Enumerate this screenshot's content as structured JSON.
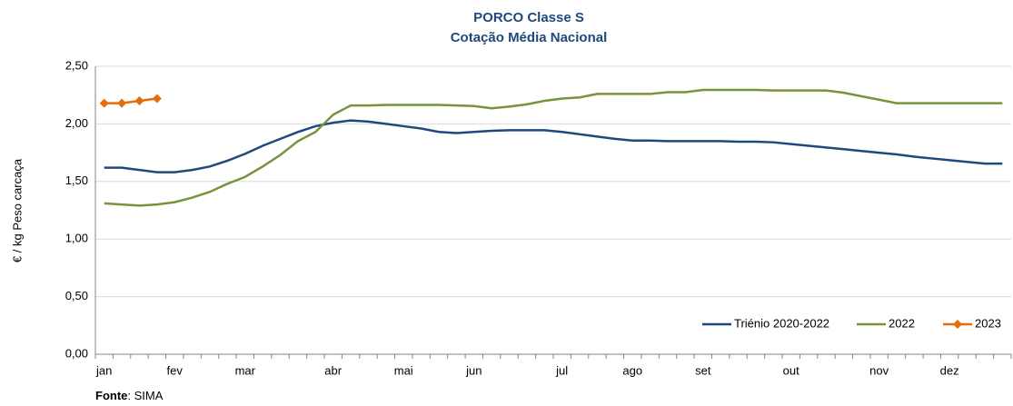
{
  "chart_data": {
    "type": "line",
    "title": "PORCO Classe S",
    "subtitle": "Cotação Média Nacional",
    "y_label": "€ / kg Peso carcaça",
    "source_label": "Fonte",
    "source_text": ": SIMA",
    "categories": [
      "jan",
      null,
      null,
      null,
      "fev",
      null,
      null,
      null,
      "mar",
      null,
      null,
      null,
      null,
      "abr",
      null,
      null,
      null,
      "mai",
      null,
      null,
      null,
      "jun",
      null,
      null,
      null,
      null,
      "jul",
      null,
      null,
      null,
      "ago",
      null,
      null,
      null,
      "set",
      null,
      null,
      null,
      null,
      "out",
      null,
      null,
      null,
      null,
      "nov",
      null,
      null,
      null,
      "dez",
      null,
      null,
      null
    ],
    "series": [
      {
        "name": "Triénio 2020-2022",
        "color": "#1f497d",
        "marker": false,
        "values": [
          1.62,
          1.62,
          1.6,
          1.58,
          1.58,
          1.6,
          1.63,
          1.68,
          1.74,
          1.81,
          1.87,
          1.93,
          1.98,
          2.01,
          2.03,
          2.02,
          2.0,
          1.98,
          1.96,
          1.93,
          1.92,
          1.93,
          1.94,
          1.945,
          1.945,
          1.945,
          1.93,
          1.91,
          1.89,
          1.87,
          1.855,
          1.855,
          1.85,
          1.85,
          1.85,
          1.85,
          1.845,
          1.845,
          1.84,
          1.825,
          1.81,
          1.795,
          1.78,
          1.765,
          1.75,
          1.735,
          1.715,
          1.7,
          1.685,
          1.67,
          1.655,
          1.655
        ]
      },
      {
        "name": "2022",
        "color": "#77933c",
        "marker": false,
        "values": [
          1.31,
          1.3,
          1.29,
          1.3,
          1.32,
          1.36,
          1.41,
          1.48,
          1.54,
          1.63,
          1.73,
          1.85,
          1.93,
          2.08,
          2.16,
          2.16,
          2.165,
          2.165,
          2.165,
          2.165,
          2.16,
          2.155,
          2.135,
          2.15,
          2.17,
          2.2,
          2.22,
          2.23,
          2.26,
          2.26,
          2.26,
          2.26,
          2.275,
          2.275,
          2.295,
          2.295,
          2.295,
          2.295,
          2.29,
          2.29,
          2.29,
          2.29,
          2.27,
          2.24,
          2.21,
          2.18,
          2.18,
          2.18,
          2.18,
          2.18,
          2.18,
          2.18
        ]
      },
      {
        "name": "2023",
        "color": "#e46c0a",
        "marker": true,
        "values": [
          2.18,
          2.18,
          2.2,
          2.22,
          null,
          null,
          null,
          null,
          null,
          null,
          null,
          null,
          null,
          null,
          null,
          null,
          null,
          null,
          null,
          null,
          null,
          null,
          null,
          null,
          null,
          null,
          null,
          null,
          null,
          null,
          null,
          null,
          null,
          null,
          null,
          null,
          null,
          null,
          null,
          null,
          null,
          null,
          null,
          null,
          null,
          null,
          null,
          null,
          null,
          null,
          null,
          null
        ]
      }
    ],
    "ylim": [
      0,
      2.5
    ],
    "yticks": [
      {
        "value": 0,
        "label": "0,00"
      },
      {
        "value": 0.5,
        "label": "0,50"
      },
      {
        "value": 1,
        "label": "1,00"
      },
      {
        "value": 1.5,
        "label": "1,50"
      },
      {
        "value": 2,
        "label": "2,00"
      },
      {
        "value": 2.5,
        "label": "2,50"
      }
    ],
    "grid": true,
    "legend": "bottom-right"
  }
}
